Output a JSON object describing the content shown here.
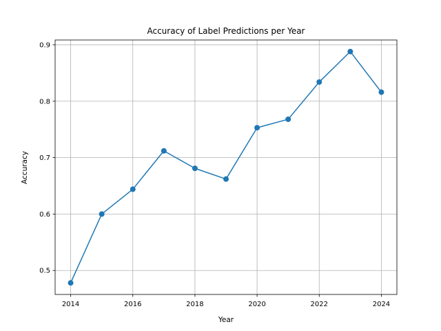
{
  "chart_data": {
    "type": "line",
    "title": "Accuracy of Label Predictions per Year",
    "xlabel": "Year",
    "ylabel": "Accuracy",
    "x": [
      2014,
      2015,
      2016,
      2017,
      2018,
      2019,
      2020,
      2021,
      2022,
      2023,
      2024
    ],
    "series": [
      {
        "values": [
          0.478,
          0.6,
          0.644,
          0.712,
          0.681,
          0.662,
          0.753,
          0.768,
          0.834,
          0.888,
          0.816
        ],
        "color": "#1f77b4",
        "marker": "circle"
      }
    ],
    "xticks": [
      "2014",
      "2016",
      "2018",
      "2020",
      "2022",
      "2024"
    ],
    "yticks": [
      "0.5",
      "0.6",
      "0.7",
      "0.8",
      "0.9"
    ],
    "xlim": [
      2013.5,
      2024.5
    ],
    "ylim": [
      0.4575,
      0.9085
    ],
    "grid": true
  }
}
